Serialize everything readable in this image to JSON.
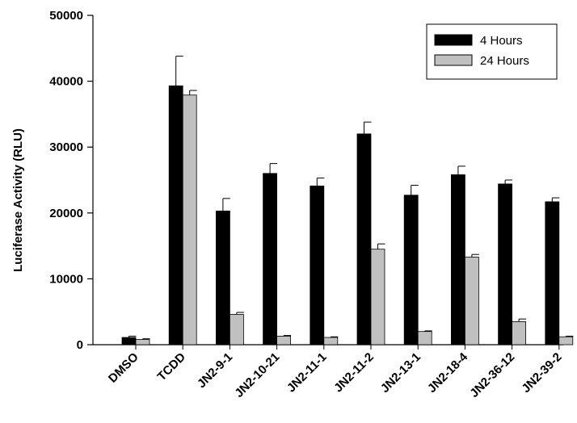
{
  "chart_data": {
    "type": "bar",
    "title": "",
    "xlabel": "",
    "ylabel": "Luciferase Activity (RLU)",
    "ylim": [
      0,
      50000
    ],
    "yticks": [
      0,
      10000,
      20000,
      30000,
      40000,
      50000
    ],
    "grid": false,
    "legend_position": "top-right",
    "categories": [
      "DMSO",
      "TCDD",
      "JN2-9-1",
      "JN2-10-21",
      "JN2-11-1",
      "JN2-11-2",
      "JN2-13-1",
      "JN2-18-4",
      "JN2-36-12",
      "JN2-39-2"
    ],
    "series": [
      {
        "name": "4 Hours",
        "color": "#000000",
        "values": [
          1100,
          39300,
          20300,
          26000,
          24100,
          32000,
          22700,
          25800,
          24400,
          21700
        ],
        "errors": [
          200,
          4500,
          1900,
          1500,
          1200,
          1800,
          1500,
          1300,
          600,
          600
        ]
      },
      {
        "name": "24 Hours",
        "color": "#c0c0c0",
        "values": [
          800,
          37900,
          4600,
          1300,
          1100,
          14500,
          2000,
          13300,
          3500,
          1200
        ],
        "errors": [
          100,
          700,
          300,
          100,
          100,
          800,
          100,
          400,
          400,
          100
        ]
      }
    ]
  }
}
